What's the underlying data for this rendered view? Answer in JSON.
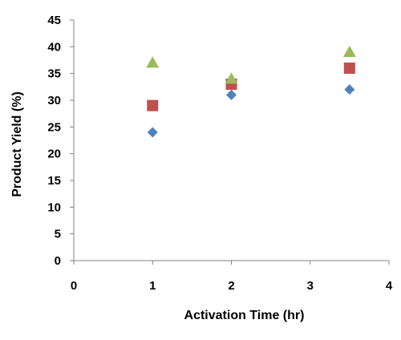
{
  "chart_data": {
    "type": "scatter",
    "xlabel": "Activation Time (hr)",
    "ylabel": "Product Yield (%)",
    "xlim": [
      0,
      4
    ],
    "ylim": [
      0,
      45
    ],
    "x_ticks": [
      "0",
      "1",
      "2",
      "3",
      "4"
    ],
    "y_ticks": [
      "0",
      "5",
      "10",
      "15",
      "20",
      "25",
      "30",
      "35",
      "40",
      "45"
    ],
    "grid": false,
    "legend": "none",
    "series": [
      {
        "marker": "diamond",
        "color": "#4F81BD",
        "points": [
          [
            1,
            24
          ],
          [
            2,
            31
          ],
          [
            3.5,
            32
          ]
        ]
      },
      {
        "marker": "square",
        "color": "#C0504D",
        "points": [
          [
            1,
            29
          ],
          [
            2,
            33
          ],
          [
            3.5,
            36
          ]
        ]
      },
      {
        "marker": "triangle",
        "color": "#9BBB59",
        "points": [
          [
            1,
            37
          ],
          [
            2,
            34
          ],
          [
            3.5,
            39
          ]
        ]
      }
    ]
  }
}
